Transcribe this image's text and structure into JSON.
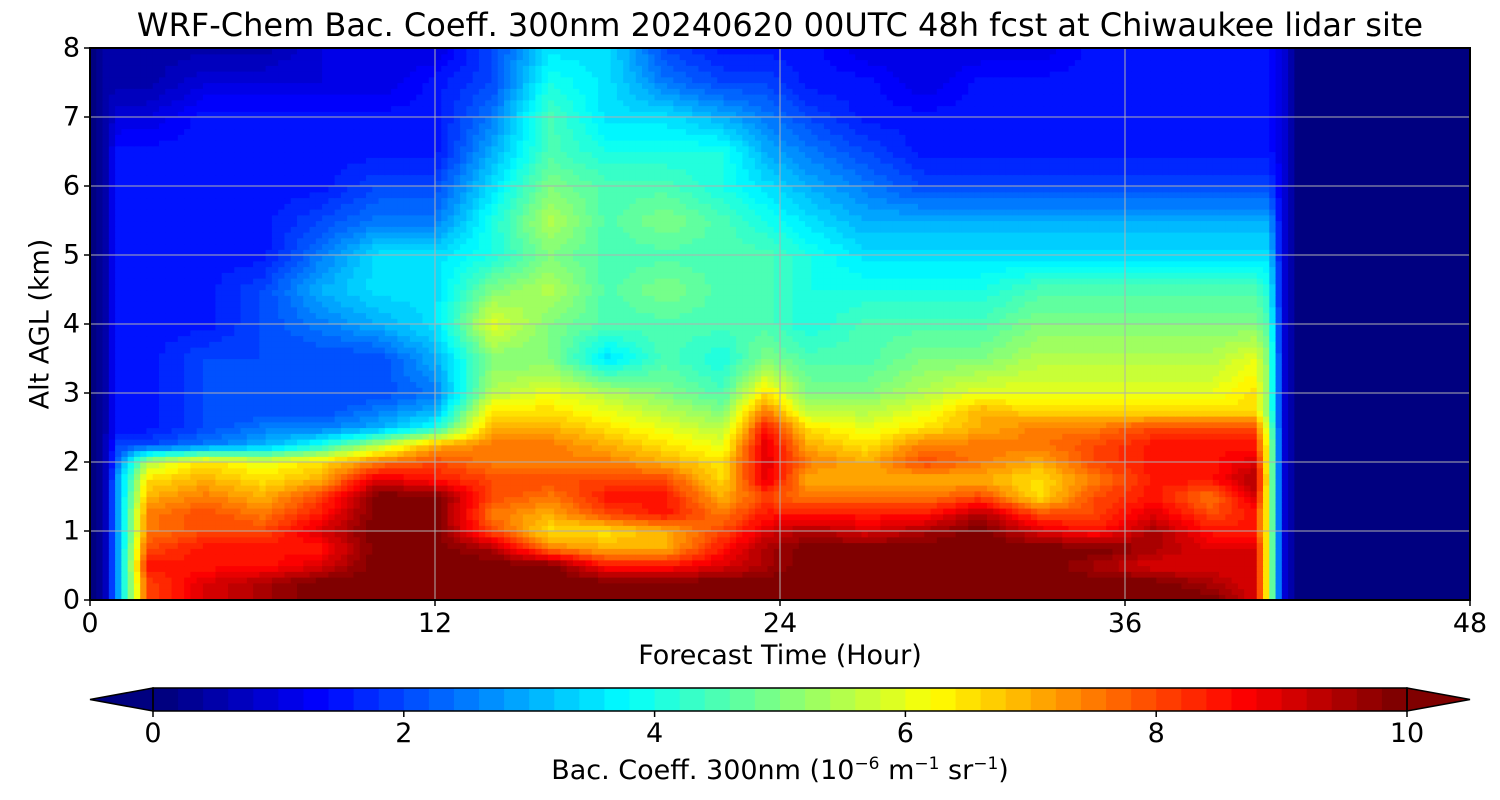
{
  "chart_data": {
    "type": "heatmap",
    "title": "WRF-Chem Bac. Coeff. 300nm  20240620 00UTC 48h fcst at Chiwaukee lidar site",
    "xlabel": "Forecast Time (Hour)",
    "ylabel": "Alt AGL (km)",
    "xlim": [
      0,
      48
    ],
    "ylim": [
      0,
      8
    ],
    "x_ticks": [
      "0",
      "12",
      "24",
      "36",
      "48"
    ],
    "y_ticks": [
      "0",
      "1",
      "2",
      "3",
      "4",
      "5",
      "6",
      "7",
      "8"
    ],
    "grid": true,
    "colormap": "jet",
    "colorbar": {
      "label_main": "Bac. Coeff. 300nm  (10",
      "label_exp1": "−6",
      "label_mid": " m",
      "label_exp2": "−1",
      "label_mid2": " sr",
      "label_exp3": "−1",
      "label_end": ")",
      "range": [
        0,
        10
      ],
      "ticks": [
        "0",
        "2",
        "4",
        "6",
        "8",
        "10"
      ],
      "extend": "both",
      "position": "bottom"
    },
    "x": [
      0,
      0.5,
      1,
      2,
      4,
      6,
      8,
      10,
      12,
      14,
      16,
      18,
      20,
      22,
      23.5,
      25,
      27,
      29,
      31,
      33,
      35,
      37,
      39,
      40.5,
      41,
      41.5,
      42,
      44,
      48
    ],
    "y": [
      0,
      0.25,
      0.5,
      0.75,
      1.0,
      1.25,
      1.5,
      1.75,
      2.0,
      2.25,
      2.5,
      2.75,
      3.0,
      3.5,
      4.0,
      4.5,
      5.0,
      5.5,
      6.0,
      6.5,
      7.0,
      7.5,
      8.0
    ],
    "z": [
      [
        0,
        0.5,
        3,
        8,
        9,
        9.5,
        10,
        10,
        10,
        10,
        10,
        10,
        10,
        10,
        10,
        10,
        10,
        10,
        10,
        10,
        10,
        10,
        10,
        9,
        6,
        1,
        0,
        0,
        0
      ],
      [
        0,
        0.5,
        3,
        8,
        9,
        9.5,
        10,
        10,
        10,
        10,
        10,
        10,
        10,
        10,
        10,
        10,
        10,
        10,
        10,
        10,
        10,
        10,
        9.5,
        9,
        6,
        1,
        0,
        0,
        0
      ],
      [
        0,
        0.5,
        3,
        8.5,
        8.5,
        8.5,
        9,
        10,
        10,
        10,
        10,
        8.5,
        8.5,
        9,
        9.5,
        10,
        10,
        10,
        10,
        10,
        9.5,
        9,
        9,
        9,
        6,
        1,
        0,
        0,
        0
      ],
      [
        0,
        0.5,
        3,
        8,
        8.5,
        8.5,
        8.5,
        10,
        10,
        9.5,
        7.5,
        7,
        7,
        8.5,
        9.5,
        10,
        10,
        10,
        10,
        10,
        10,
        9.5,
        9,
        9,
        6,
        1,
        0,
        0,
        0
      ],
      [
        0,
        0.5,
        3,
        7.5,
        8,
        8,
        9,
        10,
        10,
        8,
        6.5,
        6.5,
        7,
        8,
        9,
        9.5,
        9,
        9.5,
        10,
        9,
        8.5,
        9.5,
        8.5,
        8.5,
        6,
        1,
        0,
        0,
        0
      ],
      [
        0,
        0.5,
        3,
        7.5,
        8,
        7.5,
        8.5,
        10,
        10,
        7.5,
        7,
        8,
        8.5,
        7.5,
        8.5,
        8.5,
        8.5,
        8.5,
        9.5,
        8,
        8,
        9,
        8,
        8.5,
        6,
        1,
        0,
        0,
        0
      ],
      [
        0,
        0.5,
        3,
        7,
        7.5,
        7,
        8,
        10,
        10,
        8,
        7.5,
        8.5,
        8.5,
        7,
        8,
        7.5,
        7.5,
        7.5,
        8,
        6.5,
        8,
        8.5,
        7.5,
        9,
        6,
        1,
        0,
        0,
        0
      ],
      [
        0,
        0.5,
        3,
        6.5,
        7,
        6.5,
        7,
        9,
        8.5,
        8,
        8,
        8,
        8,
        6.5,
        9,
        7,
        7,
        7,
        7,
        6.5,
        7.5,
        8.5,
        8.5,
        9.5,
        6,
        1,
        0,
        0,
        0
      ],
      [
        0,
        0.5,
        2.5,
        5.5,
        6.5,
        6,
        6.5,
        7.5,
        8,
        7.5,
        7.5,
        7.5,
        7,
        6.5,
        9,
        7.5,
        7,
        8,
        7.5,
        7,
        8,
        8.5,
        8.5,
        9,
        6,
        1,
        0,
        0,
        0
      ],
      [
        0,
        0.5,
        2,
        2,
        2.5,
        3,
        4,
        5.5,
        7,
        7.5,
        7.5,
        7,
        6.5,
        6,
        9,
        7,
        6.5,
        7.5,
        7.5,
        7.5,
        8,
        8.5,
        8.5,
        8.5,
        6,
        1,
        0,
        0,
        0
      ],
      [
        0,
        0.5,
        1.5,
        1.5,
        2,
        2.5,
        2.5,
        3,
        4,
        7,
        7,
        6.5,
        6,
        5.5,
        8.5,
        6.5,
        6,
        6.5,
        7,
        7.5,
        7.5,
        8,
        8,
        8,
        5.5,
        1,
        0,
        0,
        0
      ],
      [
        0,
        0.5,
        1.5,
        1.5,
        2,
        2,
        2,
        2.5,
        3,
        6.5,
        6.5,
        6,
        5.5,
        5,
        7.5,
        5.5,
        5.5,
        6,
        7,
        6.5,
        6.5,
        6.5,
        6.5,
        6.5,
        5,
        1,
        0,
        0,
        0
      ],
      [
        0,
        0.5,
        1.5,
        1.5,
        2,
        2,
        2,
        2,
        2.5,
        5.5,
        6,
        5.5,
        5,
        4.5,
        6.5,
        5,
        5,
        5.5,
        6,
        6,
        6,
        6,
        6,
        6.5,
        5,
        1,
        0,
        0,
        0
      ],
      [
        0,
        0.5,
        1.5,
        1.5,
        2,
        2,
        2,
        2,
        3,
        5,
        5,
        3.5,
        4.5,
        4,
        5,
        4.5,
        4.5,
        5,
        5,
        5.5,
        5.5,
        5.5,
        5.5,
        6,
        5,
        1,
        0,
        0,
        0
      ],
      [
        0,
        0.5,
        1.5,
        1.5,
        1.5,
        2,
        2.5,
        3,
        3.5,
        6,
        5,
        4.5,
        4.5,
        4.5,
        4.5,
        4,
        4.5,
        4.5,
        4.5,
        5,
        5,
        5,
        5,
        5,
        4.5,
        1,
        0,
        0,
        0
      ],
      [
        0,
        0.5,
        1.5,
        1.5,
        1.5,
        2,
        3,
        3.5,
        3.5,
        5,
        5.5,
        4.5,
        5,
        4.5,
        4.5,
        4,
        4,
        4,
        4,
        4.5,
        4.5,
        4.5,
        4.5,
        4.5,
        4,
        1,
        0,
        0,
        0
      ],
      [
        0,
        0.5,
        1.5,
        1.5,
        1.5,
        1.5,
        2.5,
        3.5,
        3.5,
        4,
        5,
        4.5,
        4.5,
        4.5,
        4.5,
        4,
        3.5,
        3.5,
        3.5,
        3.5,
        3.5,
        3.5,
        3.5,
        3.5,
        3.5,
        1,
        0,
        0,
        0
      ],
      [
        0,
        0.5,
        1.5,
        1.5,
        1.5,
        1.5,
        2,
        2.5,
        2.5,
        4,
        5.5,
        4.5,
        5,
        4.5,
        4,
        3.5,
        3,
        3,
        3,
        3,
        3,
        3,
        3,
        3,
        3,
        1,
        0,
        0,
        0
      ],
      [
        0,
        0.5,
        1.5,
        1.5,
        1.5,
        1.5,
        1.5,
        2,
        2,
        3.5,
        5,
        4.5,
        4.5,
        4,
        3.5,
        3,
        2.5,
        2,
        2,
        2,
        2,
        2,
        2,
        2,
        2,
        1,
        0,
        0,
        0
      ],
      [
        0,
        0.5,
        1.5,
        1.5,
        1.5,
        1.5,
        1.5,
        1.5,
        1.5,
        3,
        4.5,
        4,
        4,
        4,
        3,
        2.5,
        2,
        1.5,
        1.5,
        1.5,
        1.5,
        1.5,
        1.5,
        1.5,
        1.5,
        1,
        0,
        0,
        0
      ],
      [
        0,
        0.5,
        1,
        1,
        1.5,
        1.5,
        1.5,
        1.5,
        1.5,
        2.5,
        4.5,
        3.5,
        3.5,
        3,
        2.5,
        2,
        1.5,
        1.5,
        1.5,
        1.5,
        1.5,
        1.5,
        1.5,
        1.5,
        1.5,
        1,
        0,
        0,
        0
      ],
      [
        0,
        0.5,
        0.5,
        0.5,
        1,
        1,
        1,
        1,
        1.5,
        2,
        4,
        3.5,
        2.5,
        2,
        2,
        1.5,
        1.5,
        1,
        1.5,
        1.5,
        1.5,
        1.5,
        1.5,
        1.5,
        1.5,
        1,
        0,
        0,
        0
      ],
      [
        0,
        0.5,
        0.5,
        0.5,
        0.5,
        0.5,
        1,
        1,
        1,
        2,
        3.5,
        3.5,
        2,
        1.5,
        1.5,
        1.5,
        1,
        1,
        1,
        1,
        1.5,
        1.5,
        1.5,
        1.5,
        1.5,
        1,
        0,
        0,
        0
      ]
    ]
  }
}
